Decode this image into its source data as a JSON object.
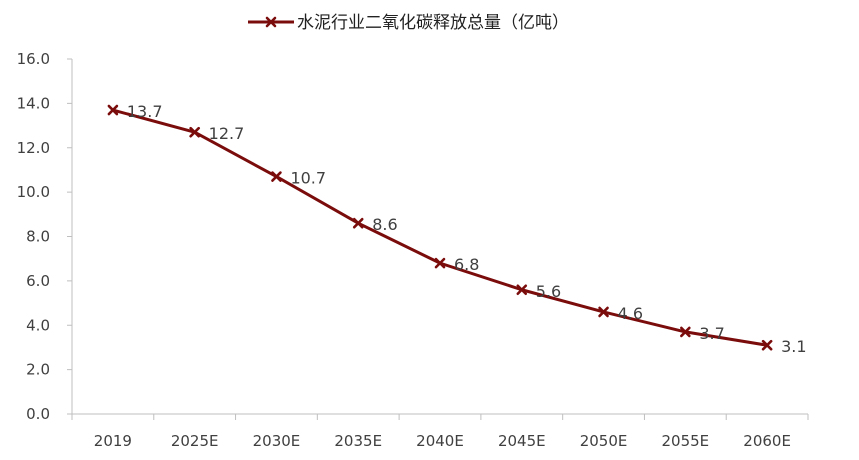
{
  "chart_data": {
    "type": "line",
    "categories": [
      "2019",
      "2025E",
      "2030E",
      "2035E",
      "2040E",
      "2045E",
      "2050E",
      "2055E",
      "2060E"
    ],
    "series": [
      {
        "name": "水泥行业二氧化碳释放总量（亿吨）",
        "values": [
          13.7,
          12.7,
          10.7,
          8.6,
          6.8,
          5.6,
          4.6,
          3.7,
          3.1
        ],
        "labels": [
          "13.7",
          "12.7",
          "10.7",
          "8.6",
          "6.8",
          "5.6",
          "4.6",
          "3.7",
          "3.1"
        ],
        "color": "#7b0c0c",
        "marker": "x"
      }
    ],
    "ylim": [
      0,
      16
    ],
    "yticks": [
      "0.0",
      "2.0",
      "4.0",
      "6.0",
      "8.0",
      "10.0",
      "12.0",
      "14.0",
      "16.0"
    ],
    "title": "",
    "xlabel": "",
    "ylabel": "",
    "grid": false,
    "legend_position": "top-center"
  }
}
